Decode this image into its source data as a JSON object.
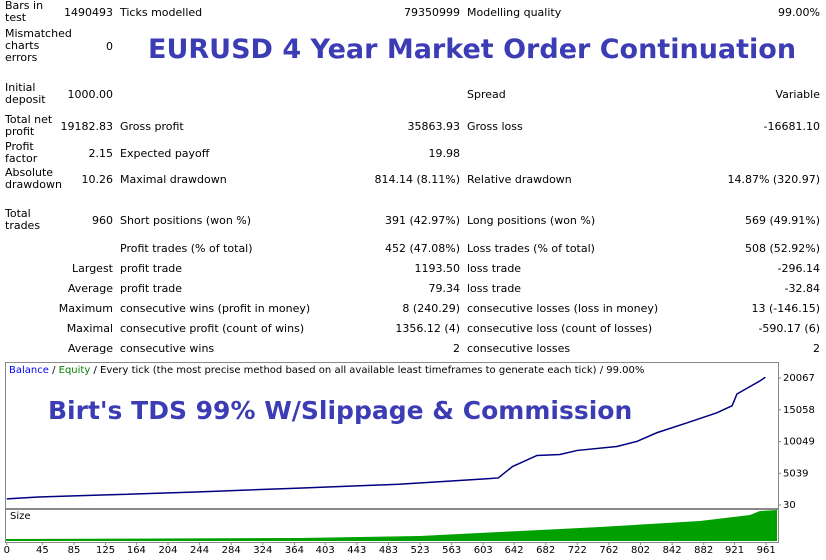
{
  "overlay": {
    "title": "EURUSD 4 Year Market Order Continuation",
    "subtitle": "Birt's TDS 99% W/Slippage & Commission"
  },
  "table": {
    "rows": [
      {
        "l1": "Bars in test",
        "v1": "1490493",
        "l2": "Ticks modelled",
        "v2": "79350999",
        "l3": "Modelling quality",
        "v3": "99.00%"
      },
      {
        "l1": "Mismatched charts errors",
        "v1": "0"
      },
      {
        "l1": "Initial deposit",
        "v1": "1000.00",
        "l3": "Spread",
        "v3": "Variable"
      },
      {
        "l1": "Total net profit",
        "v1": "19182.83",
        "l2": "Gross profit",
        "v2": "35863.93",
        "l3": "Gross loss",
        "v3": "-16681.10"
      },
      {
        "l1": "Profit factor",
        "v1": "2.15",
        "l2": "Expected payoff",
        "v2": "19.98"
      },
      {
        "l1": "Absolute drawdown",
        "v1": "10.26",
        "l2": "Maximal drawdown",
        "v2": "814.14 (8.11%)",
        "l3": "Relative drawdown",
        "v3": "14.87% (320.97)"
      },
      {
        "l1": "Total trades",
        "v1": "960",
        "l2": "Short positions (won %)",
        "v2": "391 (42.97%)",
        "l3": "Long positions (won %)",
        "v3": "569 (49.91%)"
      },
      {
        "l2": "Profit trades (% of total)",
        "v2": "452 (47.08%)",
        "l3": "Loss trades (% of total)",
        "v3": "508 (52.92%)"
      },
      {
        "r1": "Largest",
        "l2": "profit trade",
        "v2": "1193.50",
        "l3": "loss trade",
        "v3": "-296.14"
      },
      {
        "r1": "Average",
        "l2": "profit trade",
        "v2": "79.34",
        "l3": "loss trade",
        "v3": "-32.84"
      },
      {
        "r1": "Maximum",
        "l2": "consecutive wins (profit in money)",
        "v2": "8 (240.29)",
        "l3": "consecutive losses (loss in money)",
        "v3": "13 (-146.15)"
      },
      {
        "r1": "Maximal",
        "l2": "consecutive profit (count of wins)",
        "v2": "1356.12 (4)",
        "l3": "consecutive loss (count of losses)",
        "v3": "-590.17 (6)"
      },
      {
        "r1": "Average",
        "l2": "consecutive wins",
        "v2": "2",
        "l3": "consecutive losses",
        "v3": "2"
      }
    ]
  },
  "chart": {
    "type": "line",
    "legend": [
      {
        "name": "Balance",
        "color": "#0000ff"
      },
      {
        "name": "Equity",
        "color": "#008000"
      }
    ],
    "separator": "/",
    "description": "Every tick (the most precise method based on all available least timeframes to generate each tick) / 99.00%",
    "size_label": "Size",
    "series": [
      {
        "name": "Balance",
        "color": "#000080",
        "x": [
          0,
          40,
          120,
          244,
          370,
          496,
          560,
          610,
          622,
          640,
          671,
          700,
          722,
          772,
          797,
          823,
          861,
          899,
          918,
          924,
          953,
          960
        ],
        "values": [
          1000,
          1300,
          1600,
          2100,
          2700,
          3300,
          3800,
          4200,
          4300,
          6100,
          7850,
          8000,
          8640,
          9260,
          10050,
          11450,
          13000,
          14600,
          15700,
          17550,
          19600,
          20182
        ]
      }
    ],
    "xlim": [
      -1,
      976
    ],
    "ylim": [
      -443,
      22280
    ],
    "xticks": [
      0,
      45,
      85,
      125,
      164,
      204,
      244,
      284,
      324,
      364,
      403,
      443,
      483,
      523,
      563,
      603,
      642,
      682,
      722,
      762,
      802,
      842,
      882,
      921,
      961
    ],
    "yticks": [
      30,
      5039,
      10049,
      15058,
      20067
    ]
  }
}
